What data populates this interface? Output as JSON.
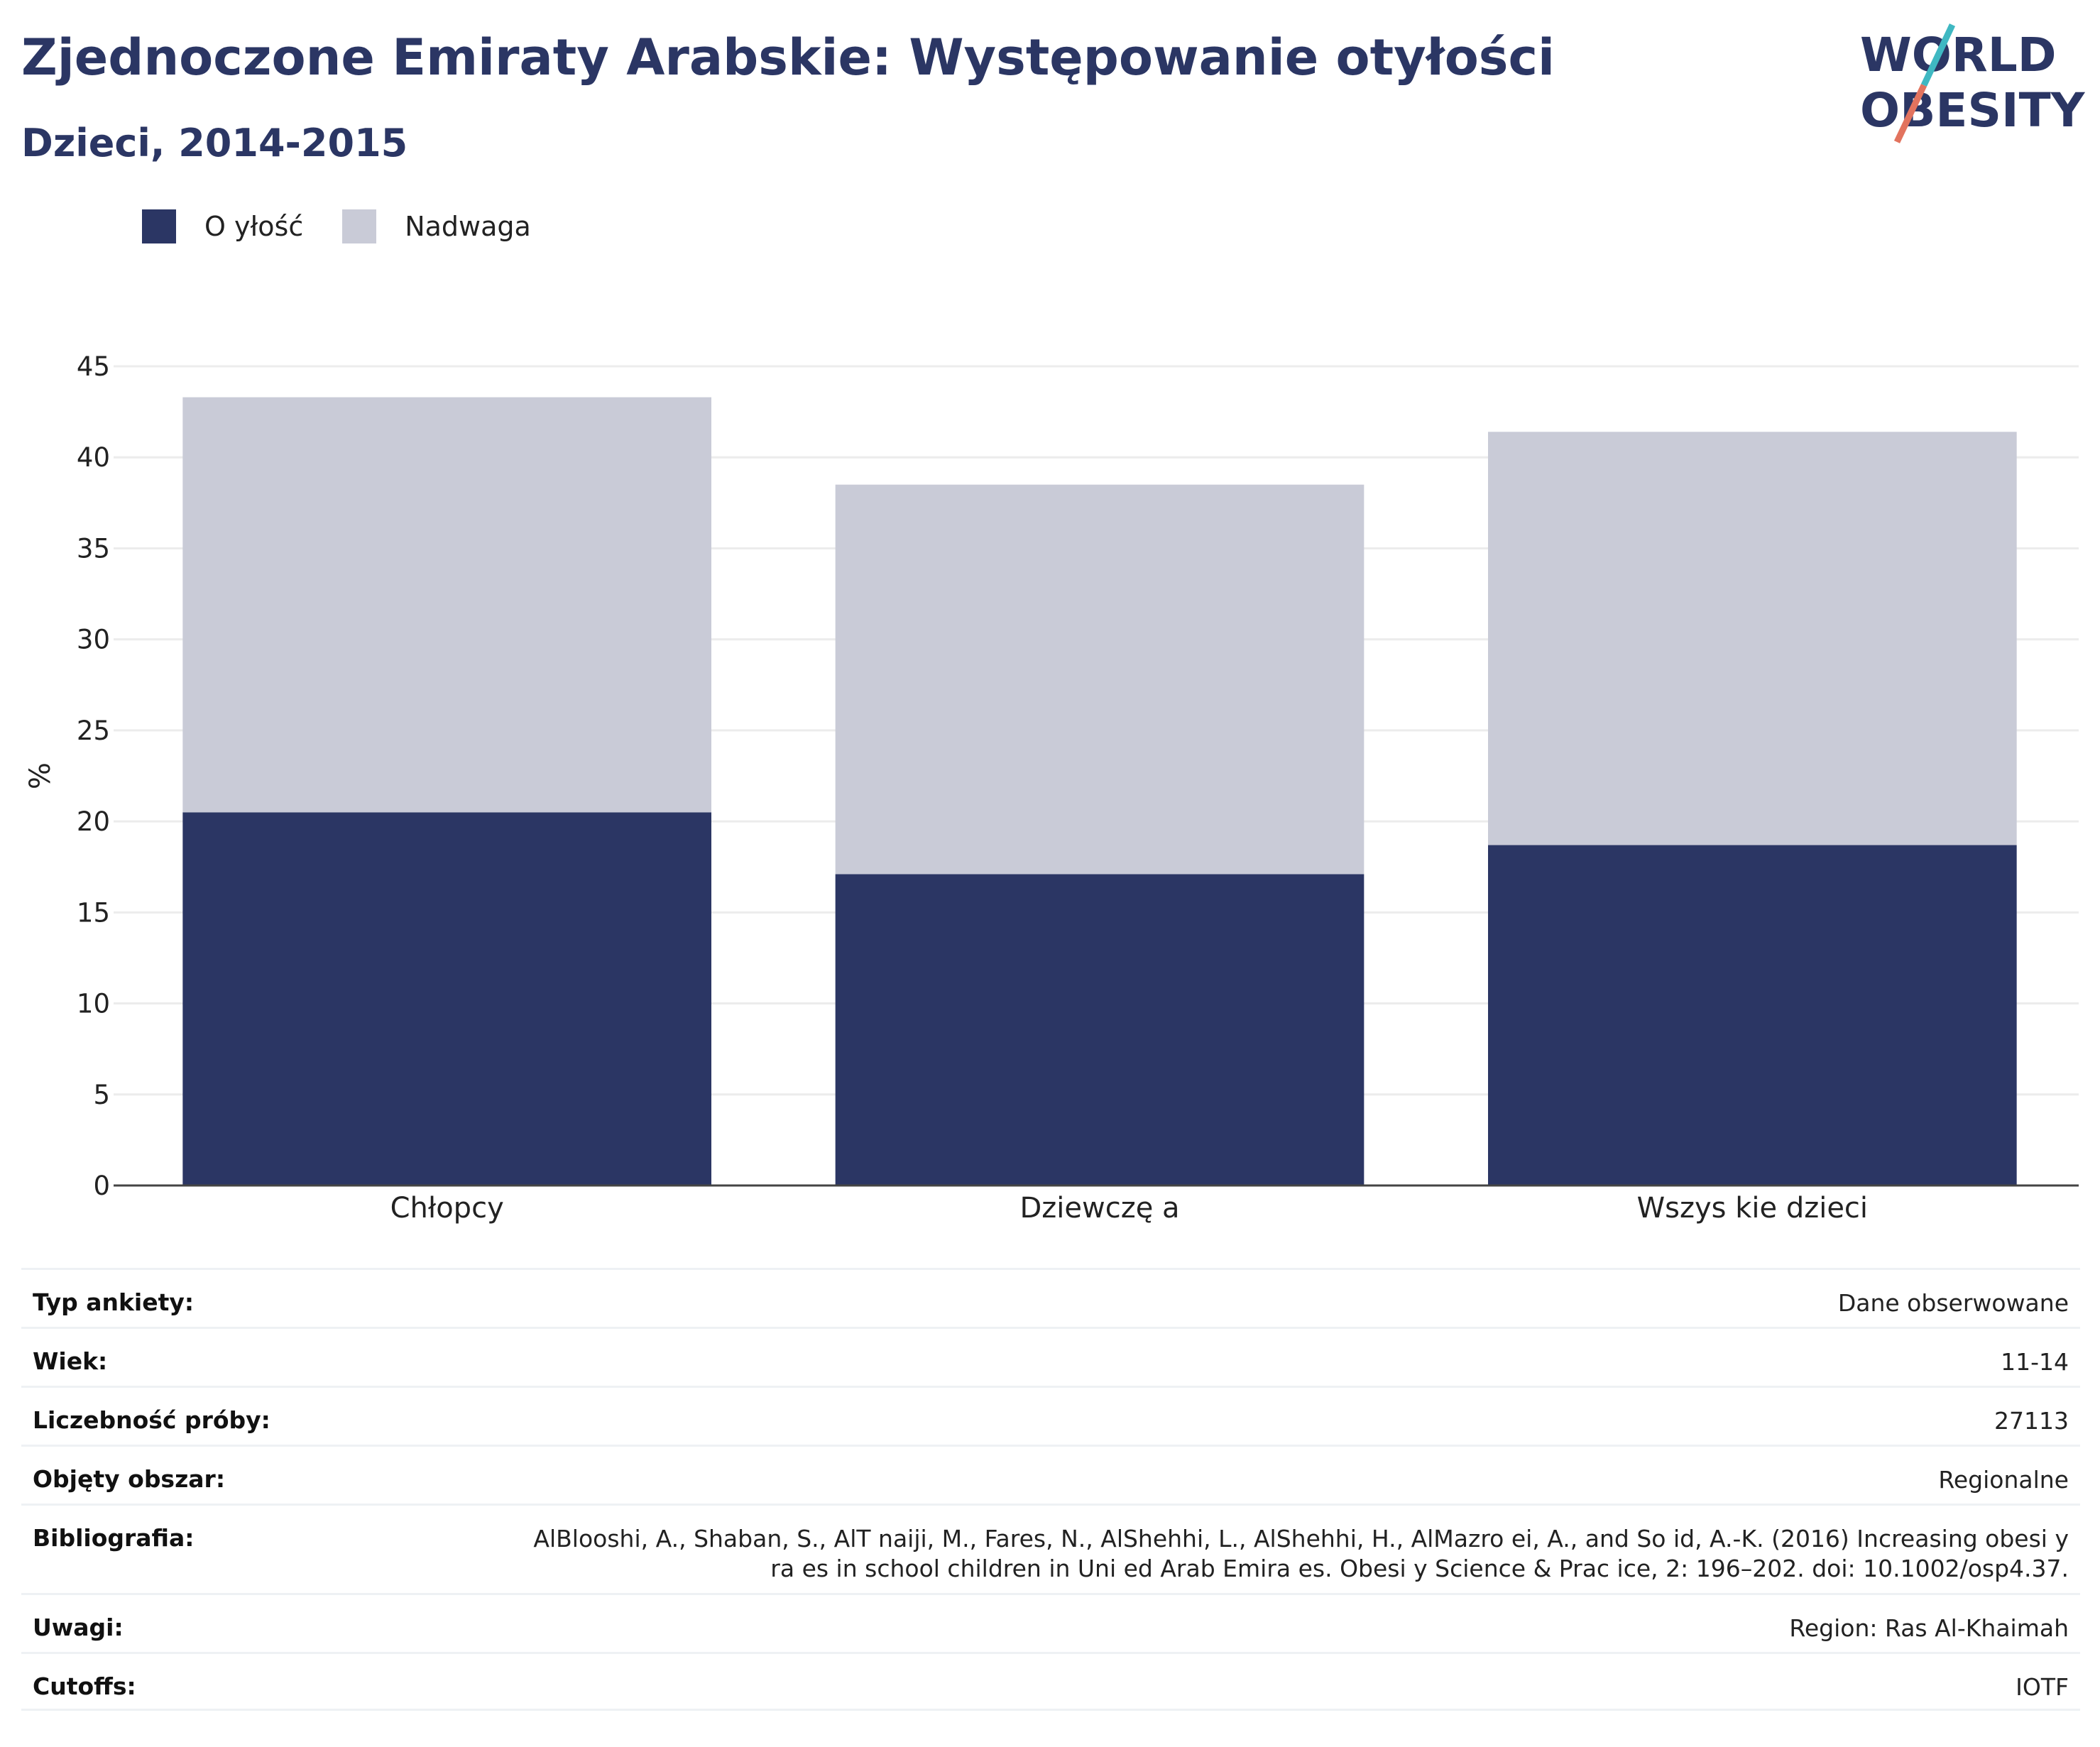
{
  "header": {
    "title": "Zjednoczone Emiraty Arabskie: Występowanie otyłości",
    "subtitle": "Dzieci, 2014-2015",
    "logo_line1": "WORLD",
    "logo_line2": "OBESITY"
  },
  "legend": {
    "items": [
      {
        "label": "O yłość",
        "color": "#2b3664"
      },
      {
        "label": "Nadwaga",
        "color": "#c9cbd7"
      }
    ]
  },
  "chart_data": {
    "type": "bar",
    "stacked": true,
    "categories": [
      "Chłopcy",
      "Dziewczę a",
      "Wszys kie dzieci"
    ],
    "series": [
      {
        "name": "O yłość",
        "values": [
          20.5,
          17.1,
          18.7
        ],
        "color": "#2b3664"
      },
      {
        "name": "Nadwaga",
        "values": [
          22.8,
          21.4,
          22.7
        ],
        "color": "#c9cbd7"
      }
    ],
    "ylabel": "%",
    "ylim": [
      0,
      45
    ],
    "yticks": [
      0,
      5,
      10,
      15,
      20,
      25,
      30,
      35,
      40,
      45
    ],
    "grid": true,
    "legend_position": "top-left"
  },
  "meta": [
    {
      "label": "Typ ankiety:",
      "value": "Dane obserwowane"
    },
    {
      "label": "Wiek:",
      "value": "11-14"
    },
    {
      "label": "Liczebność próby:",
      "value": "27113"
    },
    {
      "label": "Objęty obszar:",
      "value": "Regionalne"
    },
    {
      "label": "Bibliografia:",
      "value": "AlBlooshi, A., Shaban, S., AlT naiji, M., Fares, N., AlShehhi, L., AlShehhi, H., AlMazro ei, A., and So id, A.-K. (2016) Increasing obesi y ra es in school children in Uni ed Arab Emira es. Obesi y Science & Prac ice, 2: 196–202. doi: 10.1002/osp4.37."
    },
    {
      "label": "Uwagi:",
      "value": "Region: Ras Al-Khaimah"
    },
    {
      "label": "Cutoffs:",
      "value": "IOTF"
    }
  ]
}
